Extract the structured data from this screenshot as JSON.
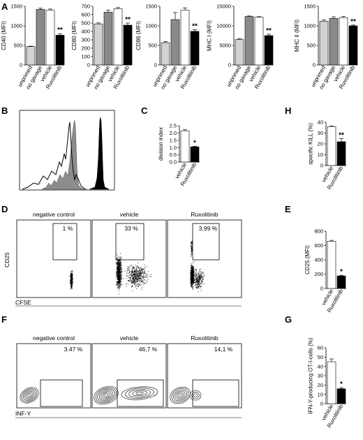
{
  "colors": {
    "unprimed": "#d2d2d2",
    "no_gavage": "#8a8a8a",
    "vehicle": "#ffffff",
    "ruxolitinib": "#000000",
    "histogram_gray": "#8c8c8c"
  },
  "panels": {
    "A": "A",
    "B": "B",
    "C": "C",
    "D": "D",
    "E": "E",
    "F": "F",
    "G": "G",
    "H": "H"
  },
  "chart_data": [
    {
      "panel": "A",
      "type": "bar",
      "ylabel": "CD40 (MFI)",
      "ylim": [
        0,
        1500
      ],
      "yticks": [
        "0",
        "500",
        "1000",
        "1500"
      ],
      "categories": [
        "unprimed",
        "no gavage",
        "vehicle",
        "Ruxolitinib"
      ],
      "values": [
        470,
        1420,
        1400,
        760
      ],
      "errors": [
        10,
        30,
        30,
        40
      ],
      "significance": [
        "",
        "",
        "",
        "**"
      ]
    },
    {
      "panel": "A",
      "type": "bar",
      "ylabel": "CD80 (MFI)",
      "ylim": [
        0,
        700
      ],
      "yticks": [
        "0",
        "100",
        "200",
        "300",
        "400",
        "500",
        "600",
        "700"
      ],
      "categories": [
        "unprimed",
        "no gavage",
        "vehicle",
        "Ruxolitinib"
      ],
      "values": [
        490,
        630,
        670,
        475
      ],
      "errors": [
        12,
        25,
        15,
        25
      ],
      "significance": [
        "",
        "",
        "",
        "**"
      ]
    },
    {
      "panel": "A",
      "type": "bar",
      "ylabel": "CD86 (MFI)",
      "ylim": [
        0,
        1500
      ],
      "yticks": [
        "0",
        "500",
        "1000",
        "1500"
      ],
      "categories": [
        "unprimed",
        "no gavage",
        "vehicle",
        "Ruxolitinib"
      ],
      "values": [
        570,
        1160,
        1400,
        860
      ],
      "errors": [
        30,
        180,
        60,
        40
      ],
      "significance": [
        "",
        "",
        "",
        "**"
      ]
    },
    {
      "panel": "A",
      "type": "bar",
      "ylabel": "MHC I (MFI)",
      "ylim": [
        0,
        15000
      ],
      "yticks": [
        "0",
        "5000",
        "10000",
        "15000"
      ],
      "categories": [
        "unprimed",
        "no gavage",
        "vehicle",
        "Ruxolitinib"
      ],
      "values": [
        6500,
        12400,
        12200,
        7500
      ],
      "errors": [
        250,
        120,
        150,
        350
      ],
      "significance": [
        "",
        "",
        "",
        "**"
      ]
    },
    {
      "panel": "A",
      "type": "bar",
      "ylabel": "MHC II (MFI)",
      "ylim": [
        0,
        1500
      ],
      "yticks": [
        "0",
        "500",
        "1000",
        "1500"
      ],
      "categories": [
        "unprimed",
        "no gavage",
        "vehicle",
        "Ruxolitinib"
      ],
      "values": [
        1120,
        1190,
        1210,
        1000
      ],
      "errors": [
        30,
        40,
        30,
        20
      ],
      "significance": [
        "",
        "",
        "",
        "**"
      ]
    },
    {
      "panel": "C",
      "type": "bar",
      "ylabel": "division index",
      "ylim": [
        0,
        2.5
      ],
      "yticks": [
        "0.0",
        "0.5",
        "1.0",
        "1.5",
        "2.0",
        "2.5"
      ],
      "categories": [
        "vehicle",
        "Ruxolitinib"
      ],
      "values": [
        2.15,
        1.05
      ],
      "errors": [
        0.08,
        0.03
      ],
      "significance": [
        "",
        "*"
      ]
    },
    {
      "panel": "H",
      "type": "bar",
      "ylabel": "specific KILL (%)",
      "ylim": [
        0,
        40
      ],
      "yticks": [
        "0",
        "10",
        "20",
        "30",
        "40"
      ],
      "categories": [
        "vehicle",
        "Ruxolitinib"
      ],
      "values": [
        36,
        22
      ],
      "errors": [
        0.6,
        2.8
      ],
      "significance": [
        "",
        "**"
      ]
    },
    {
      "panel": "E",
      "type": "bar",
      "ylabel": "CD25 (MFI)",
      "ylim": [
        0,
        800
      ],
      "yticks": [
        "0",
        "200",
        "400",
        "600",
        "800"
      ],
      "categories": [
        "vehicle",
        "Ruxolitinib"
      ],
      "values": [
        660,
        175
      ],
      "errors": [
        12,
        8
      ],
      "significance": [
        "",
        "*"
      ]
    },
    {
      "panel": "G",
      "type": "bar",
      "ylabel": "IFN-Y-producing OT-I-cells (%)",
      "ylim": [
        0,
        60
      ],
      "yticks": [
        "0",
        "10",
        "20",
        "30",
        "40",
        "50",
        "60"
      ],
      "categories": [
        "vehicle",
        "Ruxolitinib"
      ],
      "values": [
        45,
        16
      ],
      "errors": [
        3,
        1.2
      ],
      "significance": [
        "",
        "*"
      ]
    }
  ],
  "panel_b": {
    "type": "histogram"
  },
  "panel_d": {
    "type": "scatter",
    "ylabel": "CD25",
    "xlabel": "CFSE",
    "plots": [
      {
        "title": "negative control",
        "gate_pct": "1 %"
      },
      {
        "title": "vehicle",
        "gate_pct": "33 %"
      },
      {
        "title": "Ruxolitinib",
        "gate_pct": "3,99 %"
      }
    ]
  },
  "panel_f": {
    "type": "contour",
    "xlabel": "INF-Y",
    "plots": [
      {
        "title": "negative control",
        "gate_pct": "3.47 %"
      },
      {
        "title": "vehicle",
        "gate_pct": "46,7 %"
      },
      {
        "title": "Ruxolitinib",
        "gate_pct": "14,1 %"
      }
    ]
  }
}
